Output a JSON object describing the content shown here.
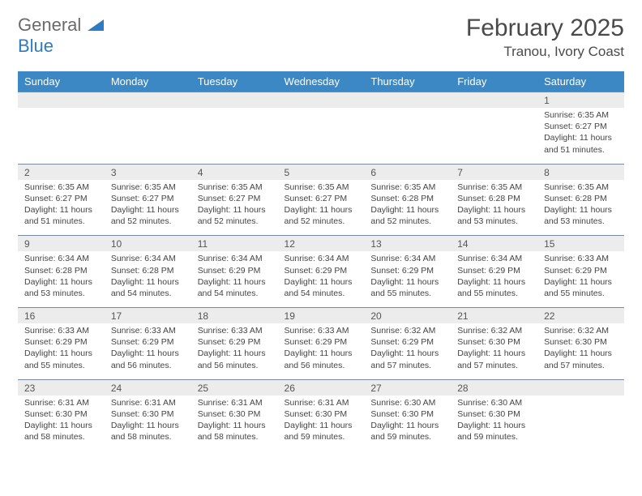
{
  "logo": {
    "line1": "General",
    "line2": "Blue"
  },
  "title": "February 2025",
  "location": "Tranou, Ivory Coast",
  "colors": {
    "header_bg": "#3b88c4",
    "header_text": "#ffffff",
    "daynum_bg": "#ececec",
    "border": "#7a8aa0",
    "logo_gray": "#6a6a6a",
    "logo_blue": "#2d7cc1"
  },
  "weekdays": [
    "Sunday",
    "Monday",
    "Tuesday",
    "Wednesday",
    "Thursday",
    "Friday",
    "Saturday"
  ],
  "weeks": [
    {
      "nums": [
        "",
        "",
        "",
        "",
        "",
        "",
        "1"
      ],
      "details": [
        "",
        "",
        "",
        "",
        "",
        "",
        "Sunrise: 6:35 AM\nSunset: 6:27 PM\nDaylight: 11 hours and 51 minutes."
      ]
    },
    {
      "nums": [
        "2",
        "3",
        "4",
        "5",
        "6",
        "7",
        "8"
      ],
      "details": [
        "Sunrise: 6:35 AM\nSunset: 6:27 PM\nDaylight: 11 hours and 51 minutes.",
        "Sunrise: 6:35 AM\nSunset: 6:27 PM\nDaylight: 11 hours and 52 minutes.",
        "Sunrise: 6:35 AM\nSunset: 6:27 PM\nDaylight: 11 hours and 52 minutes.",
        "Sunrise: 6:35 AM\nSunset: 6:27 PM\nDaylight: 11 hours and 52 minutes.",
        "Sunrise: 6:35 AM\nSunset: 6:28 PM\nDaylight: 11 hours and 52 minutes.",
        "Sunrise: 6:35 AM\nSunset: 6:28 PM\nDaylight: 11 hours and 53 minutes.",
        "Sunrise: 6:35 AM\nSunset: 6:28 PM\nDaylight: 11 hours and 53 minutes."
      ]
    },
    {
      "nums": [
        "9",
        "10",
        "11",
        "12",
        "13",
        "14",
        "15"
      ],
      "details": [
        "Sunrise: 6:34 AM\nSunset: 6:28 PM\nDaylight: 11 hours and 53 minutes.",
        "Sunrise: 6:34 AM\nSunset: 6:28 PM\nDaylight: 11 hours and 54 minutes.",
        "Sunrise: 6:34 AM\nSunset: 6:29 PM\nDaylight: 11 hours and 54 minutes.",
        "Sunrise: 6:34 AM\nSunset: 6:29 PM\nDaylight: 11 hours and 54 minutes.",
        "Sunrise: 6:34 AM\nSunset: 6:29 PM\nDaylight: 11 hours and 55 minutes.",
        "Sunrise: 6:34 AM\nSunset: 6:29 PM\nDaylight: 11 hours and 55 minutes.",
        "Sunrise: 6:33 AM\nSunset: 6:29 PM\nDaylight: 11 hours and 55 minutes."
      ]
    },
    {
      "nums": [
        "16",
        "17",
        "18",
        "19",
        "20",
        "21",
        "22"
      ],
      "details": [
        "Sunrise: 6:33 AM\nSunset: 6:29 PM\nDaylight: 11 hours and 55 minutes.",
        "Sunrise: 6:33 AM\nSunset: 6:29 PM\nDaylight: 11 hours and 56 minutes.",
        "Sunrise: 6:33 AM\nSunset: 6:29 PM\nDaylight: 11 hours and 56 minutes.",
        "Sunrise: 6:33 AM\nSunset: 6:29 PM\nDaylight: 11 hours and 56 minutes.",
        "Sunrise: 6:32 AM\nSunset: 6:29 PM\nDaylight: 11 hours and 57 minutes.",
        "Sunrise: 6:32 AM\nSunset: 6:30 PM\nDaylight: 11 hours and 57 minutes.",
        "Sunrise: 6:32 AM\nSunset: 6:30 PM\nDaylight: 11 hours and 57 minutes."
      ]
    },
    {
      "nums": [
        "23",
        "24",
        "25",
        "26",
        "27",
        "28",
        ""
      ],
      "details": [
        "Sunrise: 6:31 AM\nSunset: 6:30 PM\nDaylight: 11 hours and 58 minutes.",
        "Sunrise: 6:31 AM\nSunset: 6:30 PM\nDaylight: 11 hours and 58 minutes.",
        "Sunrise: 6:31 AM\nSunset: 6:30 PM\nDaylight: 11 hours and 58 minutes.",
        "Sunrise: 6:31 AM\nSunset: 6:30 PM\nDaylight: 11 hours and 59 minutes.",
        "Sunrise: 6:30 AM\nSunset: 6:30 PM\nDaylight: 11 hours and 59 minutes.",
        "Sunrise: 6:30 AM\nSunset: 6:30 PM\nDaylight: 11 hours and 59 minutes.",
        ""
      ]
    }
  ]
}
